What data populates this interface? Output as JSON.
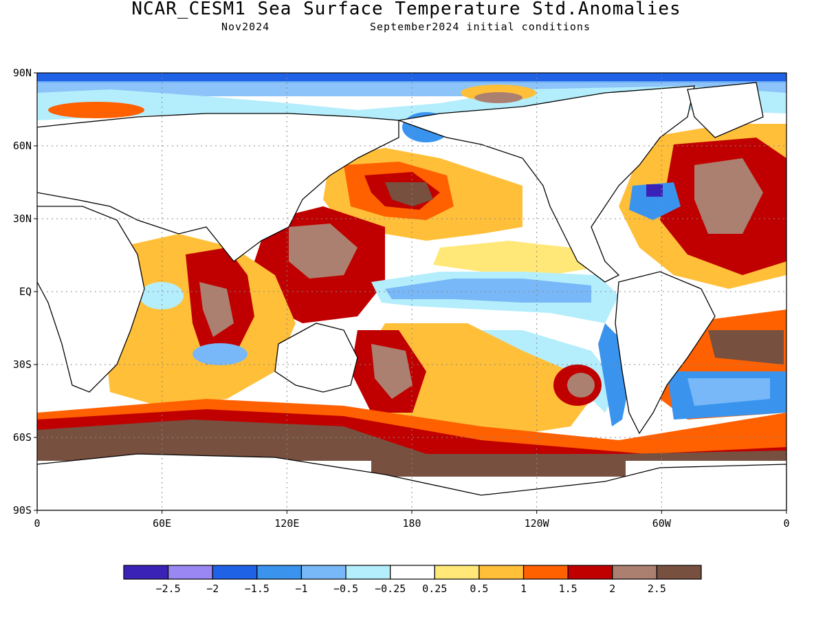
{
  "title": "NCAR_CESM1 Sea Surface Temperature Std.Anomalies",
  "subtitle_left": "Nov2024",
  "subtitle_right": "September2024 initial conditions",
  "map": {
    "lat_labels": [
      "90N",
      "60N",
      "30N",
      "EQ",
      "30S",
      "60S",
      "90S"
    ],
    "lat_values": [
      90,
      60,
      30,
      0,
      -30,
      -60,
      -90
    ],
    "lon_labels": [
      "0",
      "60E",
      "120E",
      "180",
      "120W",
      "60W",
      "0"
    ],
    "lon_values": [
      0,
      60,
      120,
      180,
      240,
      300,
      360
    ],
    "grid": true
  },
  "colorbar": {
    "colors": [
      "#3b22b6",
      "#9a87f4",
      "#1f62e6",
      "#3a94ee",
      "#78b8f8",
      "#b4eefc",
      "#ffffff",
      "#ffe878",
      "#ffbf38",
      "#ff6000",
      "#c00000",
      "#ac8070",
      "#775040"
    ],
    "labels": [
      "−2.5",
      "−2",
      "−1.5",
      "−1",
      "−0.5",
      "−0.25",
      "0.25",
      "0.5",
      "1",
      "1.5",
      "2",
      "2.5"
    ]
  }
}
